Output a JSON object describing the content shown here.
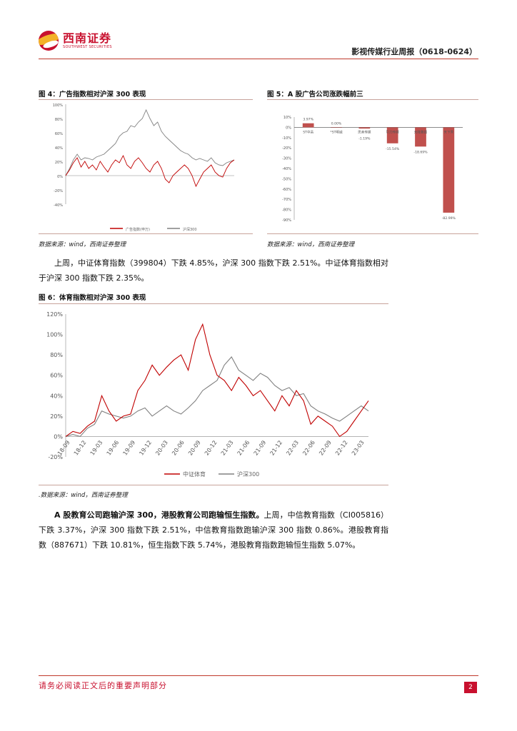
{
  "header": {
    "logo_cn": "西南证券",
    "logo_en": "SOUTHWEST SECURITIES",
    "report_title": "影视传媒行业周报（0618-0624）"
  },
  "figure4": {
    "title": "图 4：广告指数相对沪深 300 表现",
    "source": "数据来源：wind，西南证券整理",
    "chart_data": {
      "type": "line",
      "yticks": [
        "100%",
        "80%",
        "60%",
        "40%",
        "20%",
        "0%",
        "-20%",
        "-40%"
      ],
      "ylim": [
        -40,
        100
      ],
      "series": [
        {
          "name": "广告指数(申万)",
          "color": "#c00000",
          "values": [
            0,
            8,
            18,
            25,
            12,
            20,
            10,
            15,
            8,
            20,
            12,
            5,
            15,
            22,
            18,
            28,
            15,
            10,
            20,
            25,
            18,
            10,
            5,
            15,
            20,
            10,
            -5,
            -10,
            0,
            5,
            10,
            15,
            10,
            0,
            -15,
            -5,
            5,
            10,
            15,
            5,
            0,
            -2,
            10,
            18,
            22
          ]
        },
        {
          "name": "沪深300",
          "color": "#808080",
          "values": [
            0,
            10,
            22,
            30,
            22,
            25,
            24,
            22,
            26,
            28,
            30,
            35,
            40,
            45,
            55,
            60,
            62,
            70,
            68,
            75,
            80,
            92,
            80,
            70,
            75,
            62,
            55,
            50,
            45,
            40,
            35,
            32,
            30,
            25,
            22,
            24,
            22,
            20,
            25,
            18,
            15,
            14,
            18,
            20,
            22
          ]
        }
      ]
    }
  },
  "figure5": {
    "title": "图 5：A 股广告公司涨跌幅前三",
    "source": "数据来源：wind，西南证券整理",
    "chart_data": {
      "type": "bar",
      "yticks": [
        "10%",
        "0%",
        "-10%",
        "-20%",
        "-30%",
        "-40%",
        "-50%",
        "-60%",
        "-70%",
        "-80%",
        "-90%"
      ],
      "ylim": [
        -90,
        10
      ],
      "categories": [
        "ST中昌",
        "*ST明诚",
        "思美传媒",
        "引力传媒",
        "元隆雅图",
        "天下秀"
      ],
      "values": [
        3.97,
        0.0,
        -1.19,
        -15.54,
        -18.69,
        -82.99
      ],
      "value_labels": [
        "3.97%",
        "0.00%",
        "-1.19%",
        "-15.54%",
        "-18.69%",
        "-82.99%"
      ],
      "color": "#c0504d"
    }
  },
  "paragraph1": "上周，中证体育指数（399804）下跌 4.85%，沪深 300 指数下跌 2.51%。中证体育指数相对于沪深 300 指数下跌 2.35%。",
  "figure6": {
    "title": "图 6：体育指数相对沪深 300 表现",
    "source": ".数据来源：wind，西南证券整理",
    "chart_data": {
      "type": "line",
      "yticks": [
        "120%",
        "100%",
        "80%",
        "60%",
        "40%",
        "20%",
        "0%",
        "-20%"
      ],
      "ylim": [
        -20,
        120
      ],
      "xticks": [
        "18-09",
        "18-12",
        "19-03",
        "19-06",
        "19-09",
        "19-12",
        "20-03",
        "20-06",
        "20-09",
        "20-12",
        "21-03",
        "21-06",
        "21-09",
        "21-12",
        "22-03",
        "22-06",
        "22-09",
        "22-12",
        "23-03"
      ],
      "series": [
        {
          "name": "中证体育",
          "color": "#c00000",
          "values": [
            0,
            5,
            3,
            10,
            15,
            40,
            25,
            15,
            20,
            22,
            45,
            55,
            70,
            60,
            68,
            75,
            80,
            65,
            95,
            110,
            80,
            60,
            55,
            45,
            58,
            50,
            40,
            45,
            35,
            25,
            40,
            30,
            45,
            35,
            12,
            20,
            15,
            10,
            0,
            5,
            15,
            25,
            35
          ]
        },
        {
          "name": "沪深300",
          "color": "#808080",
          "values": [
            0,
            2,
            0,
            8,
            12,
            25,
            22,
            20,
            18,
            20,
            25,
            28,
            20,
            25,
            30,
            25,
            22,
            28,
            35,
            45,
            50,
            55,
            70,
            78,
            65,
            60,
            55,
            62,
            58,
            50,
            45,
            48,
            40,
            42,
            30,
            25,
            22,
            18,
            15,
            20,
            25,
            30,
            25
          ]
        }
      ]
    }
  },
  "paragraph2": {
    "bold": "A 股教育公司跑输沪深 300，港股教育公司跑输恒生指数。",
    "text": "上周，中信教育指数（CI005816）下跌 3.37%，沪深 300 指数下跌 2.51%，中信教育指数跑输沪深 300 指数 0.86%。港股教育指数（887671）下跌 10.81%，恒生指数下跌 5.74%，港股教育指数跑输恒生指数 5.07%。"
  },
  "footer": {
    "disclaimer": "请务必阅读正文后的重要声明部分",
    "page": "2"
  }
}
